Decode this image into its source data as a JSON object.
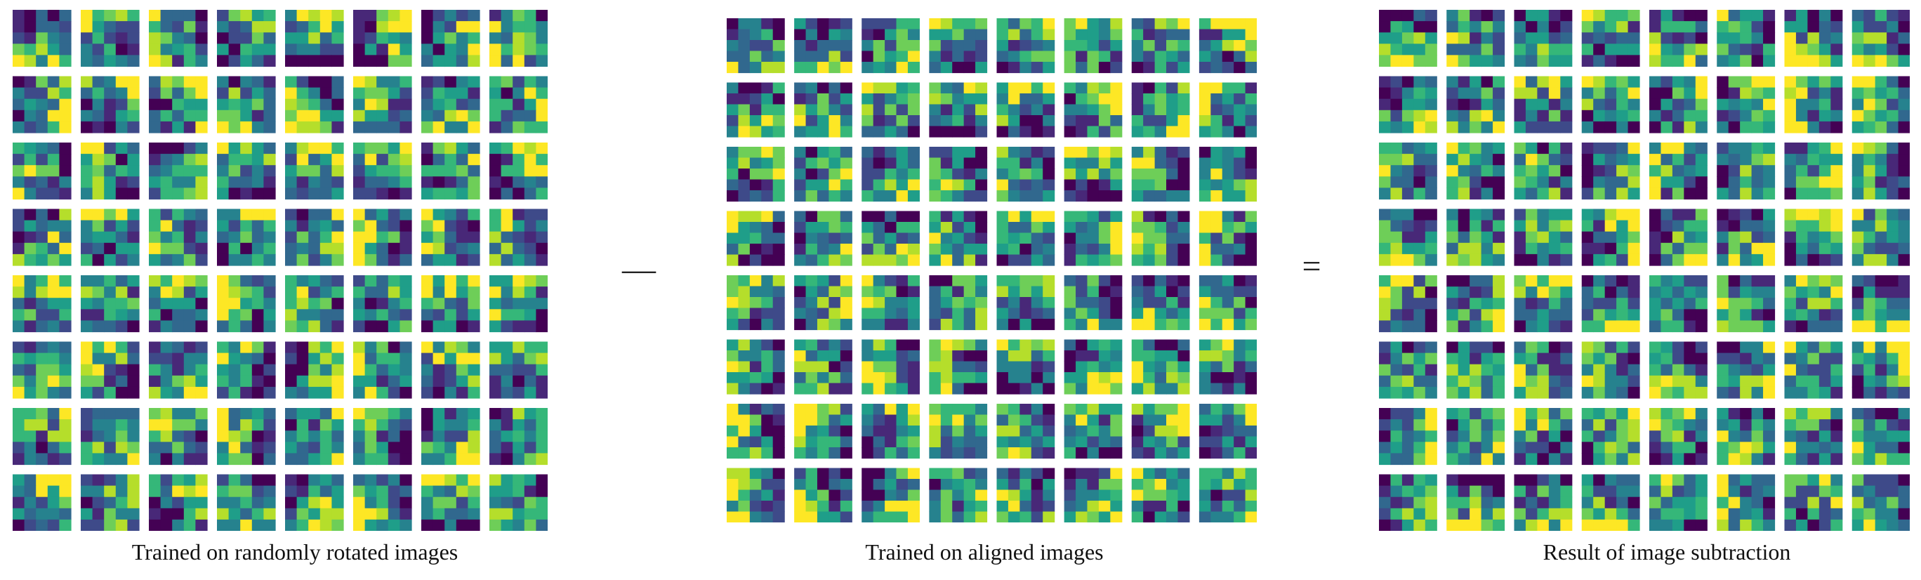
{
  "figure": {
    "panels": [
      {
        "id": "rotated",
        "caption": "Trained on randomly rotated images",
        "rows": 8,
        "cols": 8,
        "kernel_size": 5,
        "seed": 17
      },
      {
        "id": "aligned",
        "caption": "Trained on aligned images",
        "rows": 8,
        "cols": 8,
        "kernel_size": 5,
        "seed": 53
      },
      {
        "id": "difference",
        "caption": "Result of image subtraction",
        "rows": 8,
        "cols": 8,
        "kernel_size": 5,
        "seed": 91
      }
    ],
    "operators": {
      "minus": "—",
      "equals": "="
    },
    "colormap": [
      "#440154",
      "#482878",
      "#3e4a89",
      "#31688e",
      "#26828e",
      "#1f9e89",
      "#35b779",
      "#6ece58",
      "#b5de2b",
      "#fde725"
    ]
  }
}
